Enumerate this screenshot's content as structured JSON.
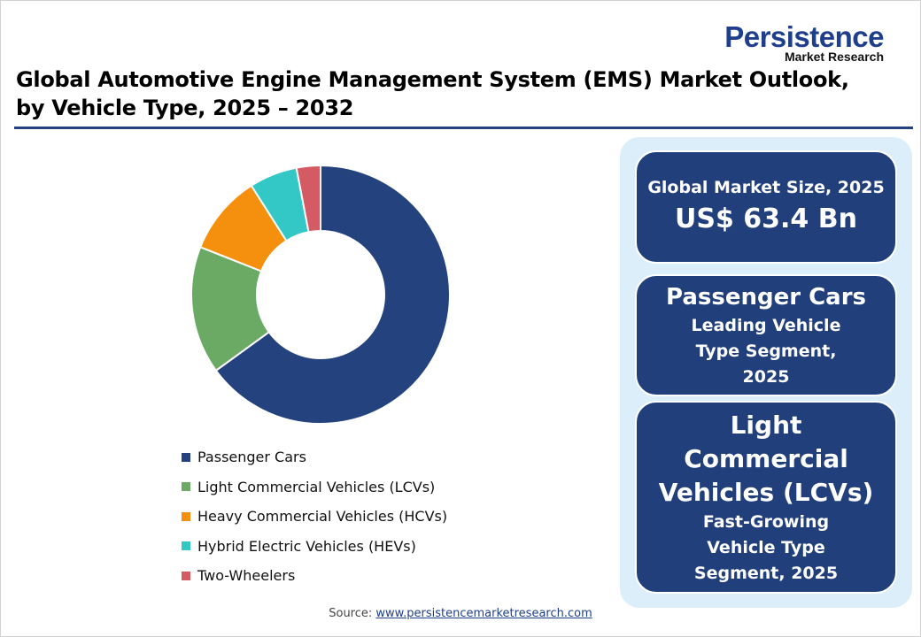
{
  "logo": {
    "line1": "Persistence",
    "line2": "Market Research"
  },
  "title": "Global Automotive Engine Management System (EMS) Market Outlook, by Vehicle Type, 2025 – 2032",
  "chart_data": {
    "type": "pie",
    "donut": true,
    "categories": [
      "Passenger Cars",
      "Light Commercial Vehicles (LCVs)",
      "Heavy Commercial Vehicles (HCVs)",
      "Hybrid Electric Vehicles (HEVs)",
      "Two-Wheelers"
    ],
    "values": [
      65,
      16,
      10,
      6,
      3
    ],
    "colors": [
      "#24427d",
      "#6aaa64",
      "#f5900f",
      "#33c8c6",
      "#d45b63"
    ],
    "legend_placement": "bottom"
  },
  "cards": [
    {
      "lines": [
        "Global Market Size, 2025",
        "US$ 63.4 Bn"
      ]
    },
    {
      "lines": [
        "Passenger Cars",
        "Leading Vehicle Type Segment, 2025"
      ]
    },
    {
      "lines": [
        "Light Commercial Vehicles (LCVs)",
        "Fast-Growing Vehicle Type Segment, 2025"
      ]
    }
  ],
  "source": {
    "label": "Source:",
    "link": "www.persistencemarketresearch.com"
  }
}
